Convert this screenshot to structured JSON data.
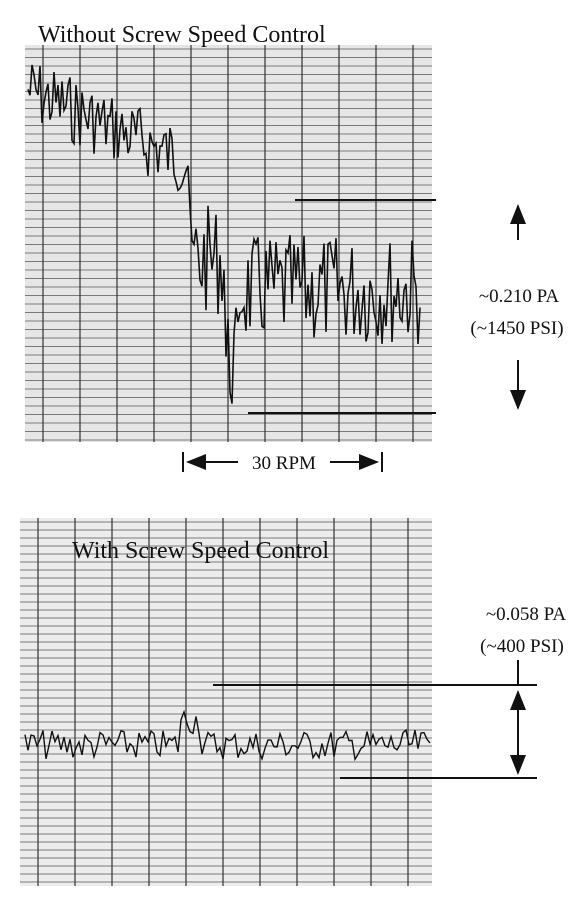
{
  "panels": [
    {
      "title": "Without Screw Speed Control",
      "amplitude": "~0.210 PA",
      "amplitude_psi": "(~1450 PSI)",
      "speed_label": "30 RPM"
    },
    {
      "title": "With Screw Speed Control",
      "amplitude": "~0.058 PA",
      "amplitude_psi": "(~400 PSI)"
    }
  ]
}
